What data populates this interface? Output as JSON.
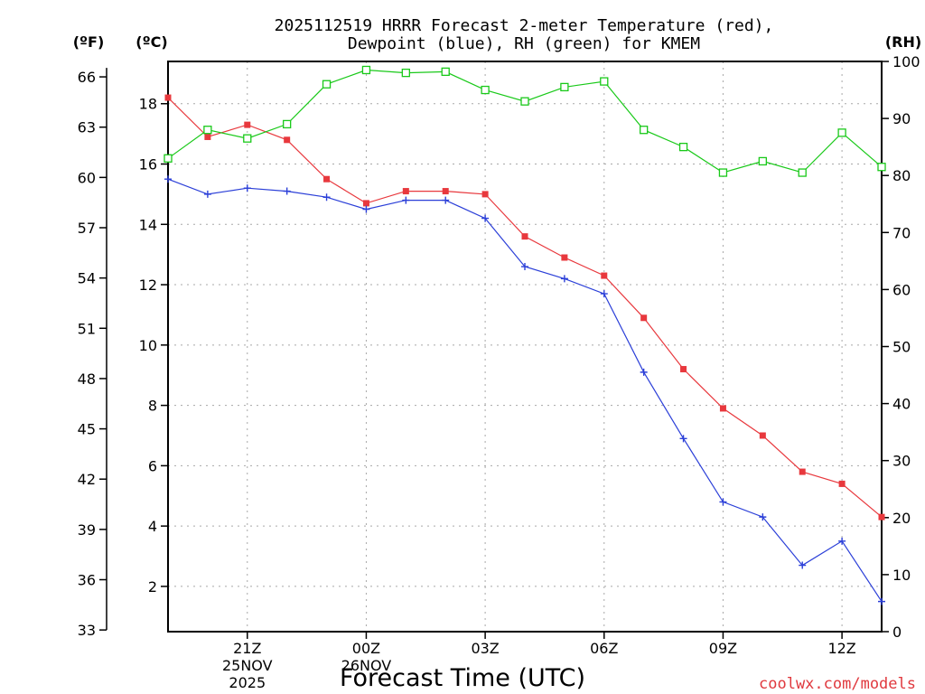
{
  "chart_data": {
    "type": "line",
    "title": [
      "2025112519 HRRR Forecast 2-meter Temperature (red),",
      "Dewpoint (blue), RH (green) for KMEM"
    ],
    "xlabel": "Forecast Time (UTC)",
    "credit": "coolwx.com/models",
    "units": {
      "fahrenheit": "(ºF)",
      "celsius": "(ºC)",
      "rh": "(RH)"
    },
    "x_hours": [
      19,
      20,
      21,
      22,
      23,
      24,
      25,
      26,
      27,
      28,
      29,
      30,
      31,
      32,
      33,
      34,
      35,
      36,
      37
    ],
    "xlim": [
      19,
      37
    ],
    "x_ticks": [
      {
        "hour": 21,
        "lines": [
          "21Z",
          "25NOV",
          "2025"
        ]
      },
      {
        "hour": 24,
        "lines": [
          "00Z",
          "26NOV"
        ]
      },
      {
        "hour": 27,
        "lines": [
          "03Z"
        ]
      },
      {
        "hour": 30,
        "lines": [
          "06Z"
        ]
      },
      {
        "hour": 33,
        "lines": [
          "09Z"
        ]
      },
      {
        "hour": 36,
        "lines": [
          "12Z"
        ]
      }
    ],
    "y_celsius": {
      "lim": [
        0.5,
        19.4
      ],
      "ticks": [
        2,
        4,
        6,
        8,
        10,
        12,
        14,
        16,
        18
      ]
    },
    "y_fahrenheit": {
      "ticks": [
        33,
        36,
        39,
        42,
        45,
        48,
        51,
        54,
        57,
        60,
        63,
        66
      ]
    },
    "y_rh": {
      "lim": [
        0,
        100
      ],
      "ticks": [
        0,
        10,
        20,
        30,
        40,
        50,
        60,
        70,
        80,
        90,
        100
      ]
    },
    "grid": true,
    "series": [
      {
        "name": "Temperature",
        "axis": "celsius",
        "color": "#e8383d",
        "marker": "filled-square",
        "values": [
          18.2,
          16.9,
          17.3,
          16.8,
          15.5,
          14.7,
          15.1,
          15.1,
          15.0,
          13.6,
          12.9,
          12.3,
          10.9,
          9.2,
          7.9,
          7.0,
          5.8,
          5.4,
          4.3
        ]
      },
      {
        "name": "Dewpoint",
        "axis": "celsius",
        "color": "#2b3fd8",
        "marker": "plus",
        "values": [
          15.5,
          15.0,
          15.2,
          15.1,
          14.9,
          14.5,
          14.8,
          14.8,
          14.2,
          12.6,
          12.2,
          11.7,
          9.1,
          6.9,
          4.8,
          4.3,
          2.7,
          3.5,
          1.5
        ]
      },
      {
        "name": "RH",
        "axis": "rh",
        "color": "#19c919",
        "marker": "open-square",
        "values": [
          83,
          88,
          86.5,
          89,
          96,
          98.5,
          98,
          98.2,
          95,
          93,
          95.5,
          96.5,
          88,
          85,
          80.5,
          82.5,
          80.5,
          87.5,
          81.5
        ]
      }
    ]
  }
}
